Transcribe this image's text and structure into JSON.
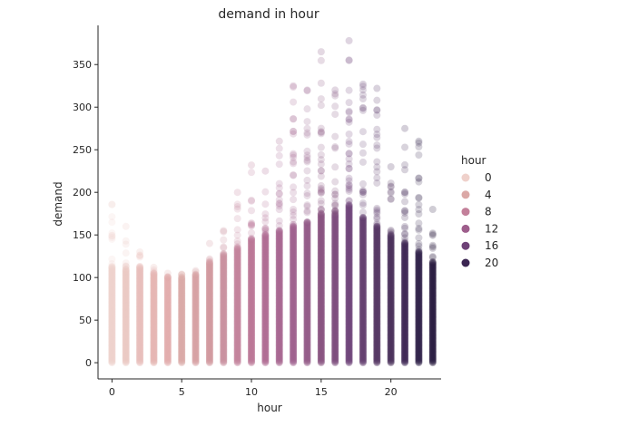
{
  "chart_data": {
    "type": "scatter",
    "title": "demand in hour",
    "xlabel": "hour",
    "ylabel": "demand",
    "xlim": [
      -1,
      23.6
    ],
    "ylim": [
      -19,
      396
    ],
    "x_ticks": [
      0,
      5,
      10,
      15,
      20
    ],
    "y_ticks": [
      0,
      50,
      100,
      150,
      200,
      250,
      300,
      350
    ],
    "grid": false,
    "legend": {
      "title": "hour",
      "placement": "right",
      "entries": [
        {
          "label": "0",
          "color": "#efd1cb"
        },
        {
          "label": "4",
          "color": "#dba8a6"
        },
        {
          "label": "8",
          "color": "#c3809a"
        },
        {
          "label": "12",
          "color": "#9e5e8c"
        },
        {
          "label": "16",
          "color": "#6e4277"
        },
        {
          "label": "20",
          "color": "#3b2552"
        }
      ]
    },
    "hour_colors": [
      "#efd1cb",
      "#ecc8c3",
      "#e9bebb",
      "#e5b5b3",
      "#e1abab",
      "#dba8a6",
      "#d6a0a2",
      "#d0979f",
      "#c98e9d",
      "#c3809a",
      "#b97596",
      "#ae6b92",
      "#a5648f",
      "#9e5e8c",
      "#925888",
      "#86517f",
      "#7b4a7a",
      "#6e4277",
      "#613b6c",
      "#543462",
      "#492d5a",
      "#3b2552",
      "#2f1f48",
      "#271b3e"
    ],
    "hour_columns": [
      {
        "hour": 0,
        "min": 0,
        "dense_max": 113,
        "max": 186
      },
      {
        "hour": 1,
        "min": 0,
        "dense_max": 110,
        "max": 160
      },
      {
        "hour": 2,
        "min": 0,
        "dense_max": 113,
        "max": 130
      },
      {
        "hour": 3,
        "min": 0,
        "dense_max": 105,
        "max": 112
      },
      {
        "hour": 4,
        "min": 0,
        "dense_max": 100,
        "max": 105
      },
      {
        "hour": 5,
        "min": 0,
        "dense_max": 100,
        "max": 104
      },
      {
        "hour": 6,
        "min": 0,
        "dense_max": 103,
        "max": 108
      },
      {
        "hour": 7,
        "min": 0,
        "dense_max": 118,
        "max": 140
      },
      {
        "hour": 8,
        "min": 0,
        "dense_max": 128,
        "max": 155
      },
      {
        "hour": 9,
        "min": 0,
        "dense_max": 135,
        "max": 200
      },
      {
        "hour": 10,
        "min": 0,
        "dense_max": 145,
        "max": 232
      },
      {
        "hour": 11,
        "min": 0,
        "dense_max": 150,
        "max": 225
      },
      {
        "hour": 12,
        "min": 0,
        "dense_max": 155,
        "max": 260
      },
      {
        "hour": 13,
        "min": 0,
        "dense_max": 160,
        "max": 325
      },
      {
        "hour": 14,
        "min": 0,
        "dense_max": 165,
        "max": 320
      },
      {
        "hour": 15,
        "min": 0,
        "dense_max": 175,
        "max": 365
      },
      {
        "hour": 16,
        "min": 0,
        "dense_max": 175,
        "max": 320
      },
      {
        "hour": 17,
        "min": 0,
        "dense_max": 185,
        "max": 378
      },
      {
        "hour": 18,
        "min": 0,
        "dense_max": 170,
        "max": 327
      },
      {
        "hour": 19,
        "min": 0,
        "dense_max": 160,
        "max": 322
      },
      {
        "hour": 20,
        "min": 0,
        "dense_max": 150,
        "max": 230
      },
      {
        "hour": 21,
        "min": 0,
        "dense_max": 140,
        "max": 275
      },
      {
        "hour": 22,
        "min": 0,
        "dense_max": 130,
        "max": 260
      },
      {
        "hour": 23,
        "min": 0,
        "dense_max": 118,
        "max": 180
      }
    ]
  }
}
